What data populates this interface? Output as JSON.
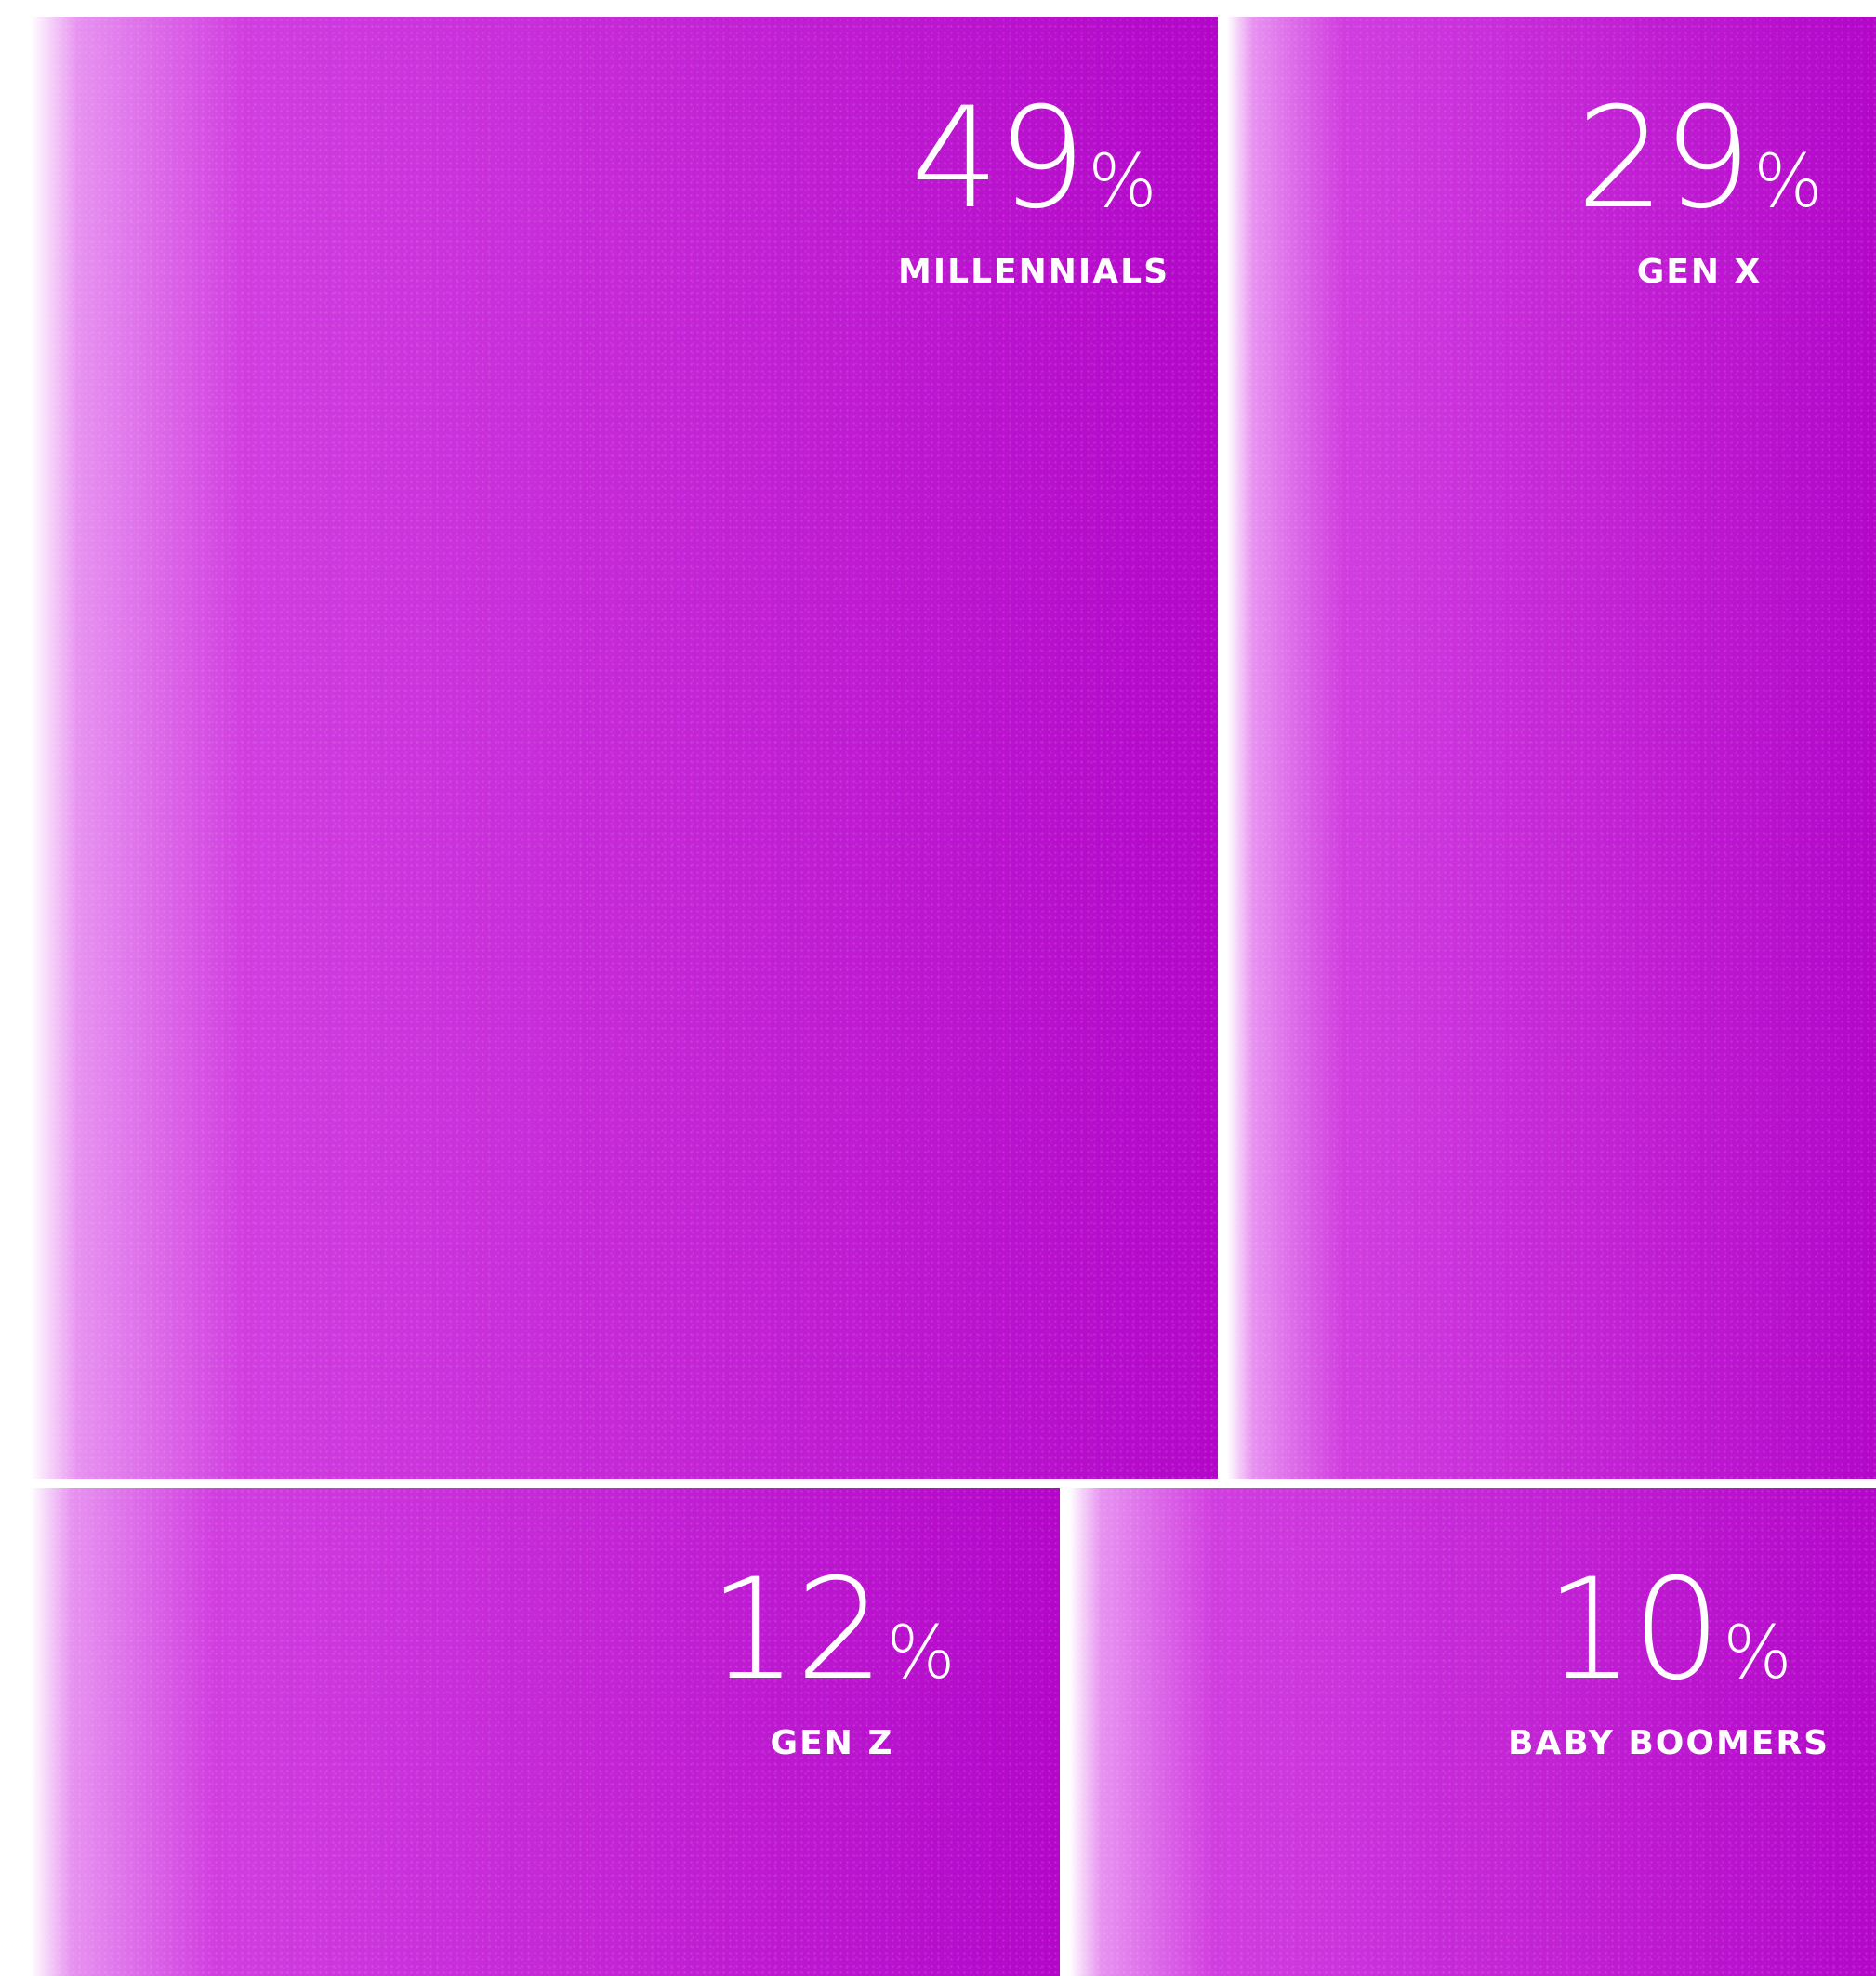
{
  "chart_data": {
    "type": "treemap",
    "unit": "%",
    "items": [
      {
        "label": "MILLENNIALS",
        "value": 49
      },
      {
        "label": "GEN X",
        "value": 29
      },
      {
        "label": "GEN Z",
        "value": 12
      },
      {
        "label": "BABY BOOMERS",
        "value": 10
      }
    ],
    "colors": {
      "tile_light": "#ffffff",
      "tile_mid": "#d13ee0",
      "tile_dark": "#b306c9",
      "text": "#ffffff",
      "background": "#ffffff"
    }
  }
}
